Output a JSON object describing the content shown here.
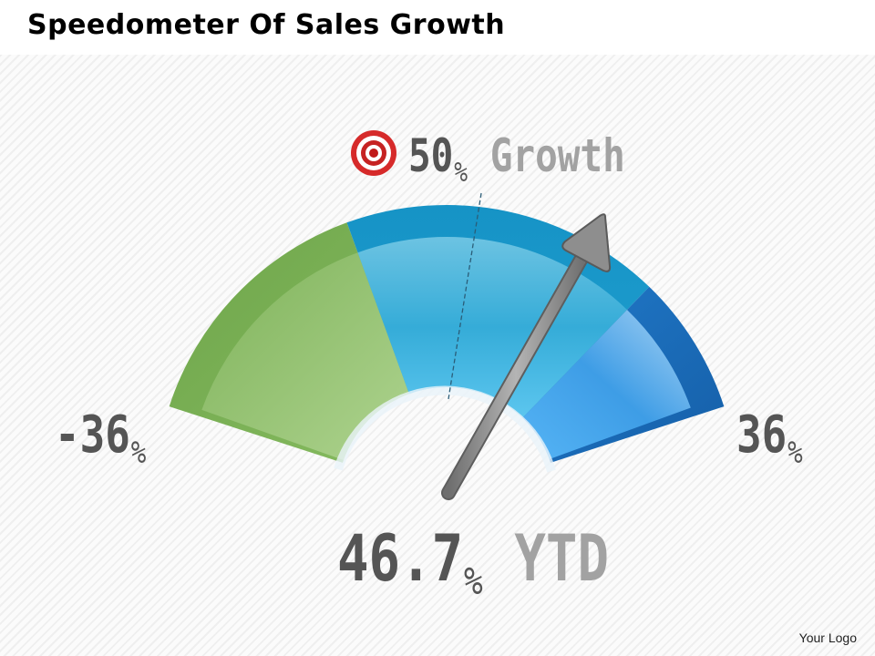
{
  "header": {
    "title": "Speedometer Of Sales Growth"
  },
  "chart_data": {
    "type": "gauge",
    "title": "Speedometer Of Sales Growth",
    "min": {
      "value": -36,
      "label": "-36",
      "unit": "%"
    },
    "max": {
      "value": 36,
      "label": "36",
      "unit": "%"
    },
    "target": {
      "value": 50,
      "label": "50",
      "unit": "%",
      "caption": "Growth",
      "icon": "target-icon"
    },
    "current": {
      "value": 46.7,
      "label": "46.7",
      "unit": "%",
      "caption": "YTD"
    },
    "segments": [
      {
        "name": "low",
        "color": "#8cc06a"
      },
      {
        "name": "mid",
        "color": "#3bb0e0"
      },
      {
        "name": "high",
        "color": "#2a8ee0"
      }
    ],
    "needle_color": "#8a8a8a"
  },
  "footer": {
    "logo_text": "Your Logo"
  }
}
